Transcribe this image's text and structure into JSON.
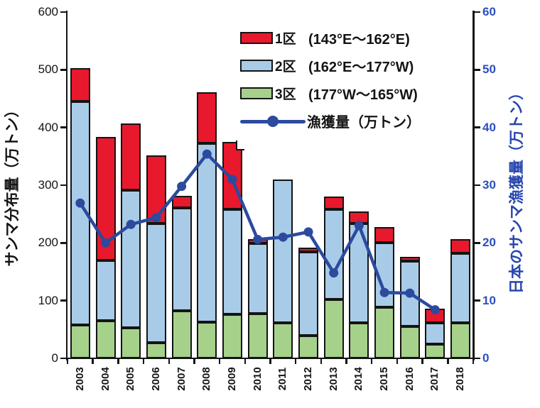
{
  "chart_data": {
    "type": "bar",
    "subtype": "stacked-bar-with-line-overlay",
    "years": [
      "2003",
      "2004",
      "2005",
      "2006",
      "2007",
      "2008",
      "2009",
      "2010",
      "2011",
      "2012",
      "2013",
      "2014",
      "2015",
      "2016",
      "2017",
      "2018"
    ],
    "left_axis": {
      "label": "サンマ分布量（万トン）",
      "min": 0,
      "max": 600,
      "step": 100,
      "color": "#141414"
    },
    "right_axis": {
      "label": "日本のサンマ漁獲量（万トン）",
      "min": 0,
      "max": 60,
      "step": 10,
      "color": "#2b4fc0",
      "title_color": "#2746ad"
    },
    "series": [
      {
        "key": "ku1",
        "name": "1区",
        "range": "(143°E～162°E)",
        "color": "#e8192c",
        "values": [
          58,
          214,
          116,
          118,
          21,
          88,
          117,
          8,
          0,
          8,
          22,
          21,
          27,
          8,
          24,
          24
        ]
      },
      {
        "key": "ku2",
        "name": "2区",
        "range": "(162°E～177°W)",
        "color": "#a8cce8",
        "values": [
          387,
          105,
          238,
          207,
          179,
          310,
          182,
          122,
          249,
          145,
          156,
          172,
          112,
          113,
          37,
          121
        ]
      },
      {
        "key": "ku3",
        "name": "3区",
        "range": "(177°W～165°W)",
        "color": "#a5d18b",
        "values": [
          58,
          65,
          53,
          27,
          82,
          63,
          76,
          77,
          61,
          39,
          102,
          61,
          88,
          55,
          25,
          61
        ]
      }
    ],
    "stack_order_bottom_to_top": [
      "ku3",
      "ku2",
      "ku1"
    ],
    "bar_totals": [
      503,
      384,
      407,
      352,
      282,
      461,
      375,
      207,
      310,
      192,
      280,
      254,
      227,
      176,
      86,
      206
    ],
    "line": {
      "name": "漁獲量（万トン）",
      "color": "#2c4a9e",
      "values": [
        26.9,
        20.0,
        23.2,
        24.4,
        29.8,
        35.4,
        31.0,
        20.6,
        21.0,
        21.9,
        14.8,
        23.0,
        11.4,
        11.3,
        8.4,
        null
      ]
    },
    "step_2009": {
      "year": "2009",
      "right_portion_top": 360,
      "width_frac": 0.28,
      "note": "top of 2009 bar steps down to 360 on its right side"
    },
    "grid": "off",
    "legend_position": "top-right-inside"
  }
}
